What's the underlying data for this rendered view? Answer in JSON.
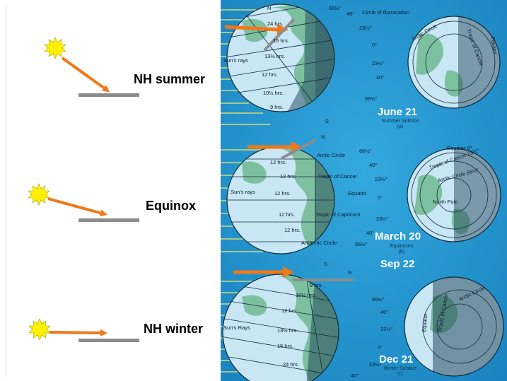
{
  "colors": {
    "arrow": "#f07818",
    "surface": "#8c8c8c",
    "sun": "#fff000",
    "poster_bg": "#1f9ad6",
    "ocean": "#c9e6f5",
    "land": "#7cc0a0"
  },
  "left": {
    "labels": [
      "NH summer",
      "Equinox",
      "NH winter"
    ]
  },
  "poster": {
    "circle_of_illumination": "Circle of illumination",
    "suns_rays": [
      "Sun's rays",
      "Sun's rays",
      "Sun's Rays"
    ],
    "pole_n": "N",
    "pole_s": "S",
    "panel_a": {
      "hours": [
        "24 hrs.",
        "15 hrs.",
        "13½ hrs.",
        "12 hrs.",
        "10½ hrs.",
        "9 hrs."
      ],
      "degrees": [
        "66½°",
        "40°",
        "23½°",
        "0°",
        "23½°",
        "40°",
        "66½°"
      ],
      "polar_labels": [
        "Arctic Circle",
        "Tropic of Cancer",
        "Equator"
      ],
      "date": "June 21",
      "subtitle": "Summer Solstice",
      "sublabel": "(a)"
    },
    "panel_b": {
      "hours": [
        "12 hrs.",
        "12 hrs.",
        "12 hrs.",
        "12 hrs.",
        "12 hrs."
      ],
      "lines": [
        "Arctic Circle",
        "Tropic of Cancer",
        "Equator",
        "Tropic of Capricorn",
        "Antarctic Circle"
      ],
      "degrees": [
        "66½°",
        "40°",
        "23½°",
        "0°",
        "23½°",
        "40°",
        "66½°"
      ],
      "polar_labels": [
        "Equator 0°",
        "Tropic of Cancer 23½°",
        "Arctic Circle 66½°",
        "North Pole"
      ],
      "date": "March 20",
      "subtitle": "Equinoxes",
      "sublabel": "(b)",
      "date2": "Sep 22"
    },
    "panel_c": {
      "hours": [
        "9 hrs.",
        "10½ hrs.",
        "12 hrs.",
        "13½ hrs.",
        "15 hrs.",
        "24 hrs."
      ],
      "degrees": [
        "66½°",
        "40°",
        "23½°",
        "0°",
        "23½°",
        "40°"
      ],
      "polar_labels": [
        "Equator",
        "Tropic of Cancer",
        "Arctic Circle"
      ],
      "date": "Dec 21",
      "subtitle": "Winter Solstice",
      "sublabel": "(c)"
    }
  }
}
